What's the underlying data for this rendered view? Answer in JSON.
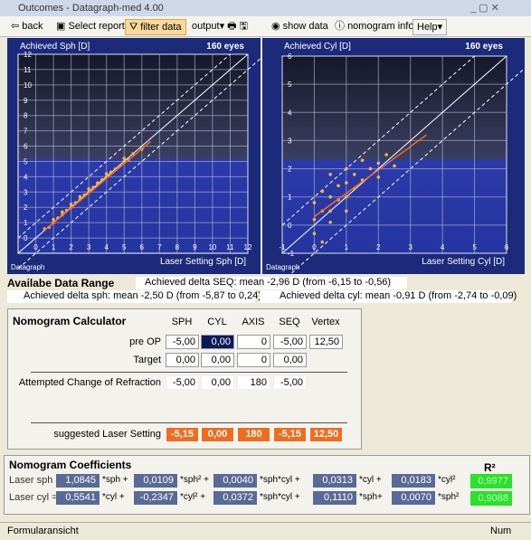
{
  "window": {
    "title": "Outcomes - Datagraph-med 4.00"
  },
  "toolbar": {
    "back": "back",
    "select_report": "Select report",
    "filter_data": "filter data",
    "output": "output",
    "show_data": "show data",
    "nomogram_info": "nomogram info",
    "help": "Help"
  },
  "charts": [
    {
      "type": "scatter",
      "title": "Achieved Sph [D]",
      "count_label": "160 eyes",
      "x_label": "Laser Setting Sph [D]",
      "brand": "Datagraph",
      "xlim": [
        -1,
        12
      ],
      "ylim": [
        -1,
        12
      ],
      "xticks": [
        0,
        1,
        2,
        3,
        4,
        5,
        6,
        7,
        8,
        9,
        10,
        11,
        12
      ],
      "yticks": [
        0,
        1,
        2,
        3,
        4,
        5,
        6,
        7,
        8,
        9,
        10,
        11,
        12
      ],
      "x": [
        0.5,
        0.75,
        1,
        1,
        1.25,
        1.5,
        1.5,
        1.75,
        2,
        2,
        2.25,
        2.5,
        2.5,
        2.75,
        3,
        3,
        3.25,
        3.5,
        3.5,
        3.75,
        4,
        4,
        4.25,
        4.5,
        4.75,
        5,
        5,
        5.25,
        5.5,
        6
      ],
      "y": [
        0.6,
        0.7,
        1.0,
        1.2,
        1.3,
        1.5,
        1.7,
        1.8,
        2.0,
        2.2,
        2.3,
        2.5,
        2.7,
        2.8,
        3.0,
        3.2,
        3.3,
        3.5,
        3.6,
        3.8,
        4.0,
        4.2,
        4.3,
        4.5,
        4.7,
        5.0,
        5.2,
        5.1,
        5.5,
        5.8
      ],
      "fit": {
        "x": [
          0.5,
          6.5
        ],
        "y": [
          0.5,
          6.3
        ]
      }
    },
    {
      "type": "scatter",
      "title": "Achieved Cyl [D]",
      "count_label": "160 eyes",
      "x_label": "Laser Setting Cyl [D]",
      "brand": "Datagraph",
      "xlim": [
        -1,
        6
      ],
      "ylim": [
        -1,
        6
      ],
      "xticks": [
        -1,
        0,
        1,
        2,
        3,
        4,
        5,
        6
      ],
      "yticks": [
        -1,
        0,
        1,
        2,
        3,
        4,
        5,
        6
      ],
      "x": [
        0,
        0,
        0.25,
        0.25,
        0.5,
        0.5,
        0.5,
        0.75,
        0.75,
        1,
        1,
        1,
        1.25,
        1.25,
        1.5,
        1.5,
        1.75,
        2,
        2,
        2.25,
        2.5,
        0.25,
        0.5,
        0,
        1
      ],
      "y": [
        0.2,
        -0.3,
        0.5,
        1.2,
        0.5,
        1.0,
        1.8,
        0.9,
        1.4,
        1.0,
        1.5,
        2.0,
        1.3,
        1.8,
        1.6,
        2.3,
        2.0,
        2.2,
        1.7,
        2.5,
        2.1,
        -0.6,
        0.1,
        0.8,
        0.5
      ],
      "fit": {
        "x": [
          0,
          3.5
        ],
        "y": [
          0.3,
          3.2
        ]
      }
    }
  ],
  "data_range": {
    "title": "Availabe Data Range",
    "seq_label": "Achieved delta SEQ:",
    "seq_value": "mean -2,96 D (from -6,15 to -0,56)",
    "sph_label": "Achieved delta sph:",
    "sph_value": "mean -2,50 D (from -5,87 to 0,24)",
    "cyl_label": "Achieved delta cyl:",
    "cyl_value": "mean -0,91 D (from -2,74 to -0,09)"
  },
  "calculator": {
    "title": "Nomogram Calculator",
    "columns": [
      "SPH",
      "CYL",
      "AXIS",
      "SEQ",
      "Vertex"
    ],
    "rows": [
      {
        "label": "pre OP",
        "cells": [
          "-5,00",
          "0,00",
          "0",
          "-5,00",
          "12,50"
        ]
      },
      {
        "label": "Target",
        "cells": [
          "0,00",
          "0,00",
          "0",
          "0,00"
        ]
      },
      {
        "label": "Attempted Change of Refraction",
        "cells": [
          "-5,00",
          "0,00",
          "180",
          "-5,00"
        ]
      },
      {
        "label": "suggested Laser Setting",
        "cells": [
          "-5,15",
          "0,00",
          "180",
          "-5,15",
          "12,50"
        ]
      }
    ]
  },
  "coefficients": {
    "title": "Nomogram Coefficients",
    "r2_header": "R²",
    "rows": [
      {
        "label": "Laser sph =",
        "terms": [
          [
            "1,0845",
            "*sph +"
          ],
          [
            "0,0109",
            "*sph² +"
          ],
          [
            "0,0040",
            "*sph*cyl +"
          ],
          [
            "0,0313",
            "*cyl +"
          ],
          [
            "0,0183",
            "*cyl²"
          ]
        ],
        "r2": "0,9977"
      },
      {
        "label": "Laser cyl =",
        "terms": [
          [
            "0,5541",
            "*cyl +"
          ],
          [
            "-0,2347",
            "*cyl² +"
          ],
          [
            "0,0372",
            "*sph*cyl +"
          ],
          [
            "0,1110",
            "*sph+"
          ],
          [
            "0,0070",
            "*sph²"
          ]
        ],
        "r2": "0,9088"
      }
    ]
  },
  "status": {
    "left": "Formularansicht",
    "right": "Num"
  }
}
